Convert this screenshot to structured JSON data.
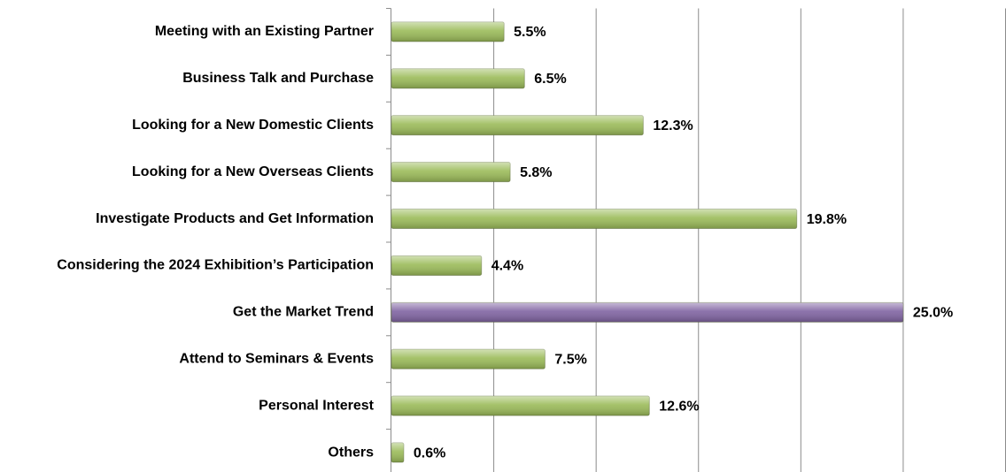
{
  "chart_data": {
    "type": "hbar",
    "categories": [
      "Meeting with an Existing Partner",
      "Business Talk and Purchase",
      "Looking for a New Domestic Clients",
      "Looking for a New Overseas Clients",
      "Investigate Products and Get Information",
      "Considering the 2024 Exhibition’s Participation",
      "Get the Market Trend",
      "Attend to Seminars & Events",
      "Personal Interest",
      "Others"
    ],
    "values": [
      5.5,
      6.5,
      12.3,
      5.8,
      19.8,
      4.4,
      25.0,
      7.5,
      12.6,
      0.6
    ],
    "value_labels": [
      "5.5%",
      "6.5%",
      "12.3%",
      "5.8%",
      "19.8%",
      "4.4%",
      "25.0%",
      "7.5%",
      "12.6%",
      "0.6%"
    ],
    "colors": [
      "#9bbb59",
      "#9bbb59",
      "#9bbb59",
      "#9bbb59",
      "#9bbb59",
      "#9bbb59",
      "#8064a2",
      "#9bbb59",
      "#9bbb59",
      "#9bbb59"
    ],
    "xlim": [
      0,
      30
    ],
    "xticks": [
      0,
      5,
      10,
      15,
      20,
      25,
      30
    ],
    "grid": true
  }
}
